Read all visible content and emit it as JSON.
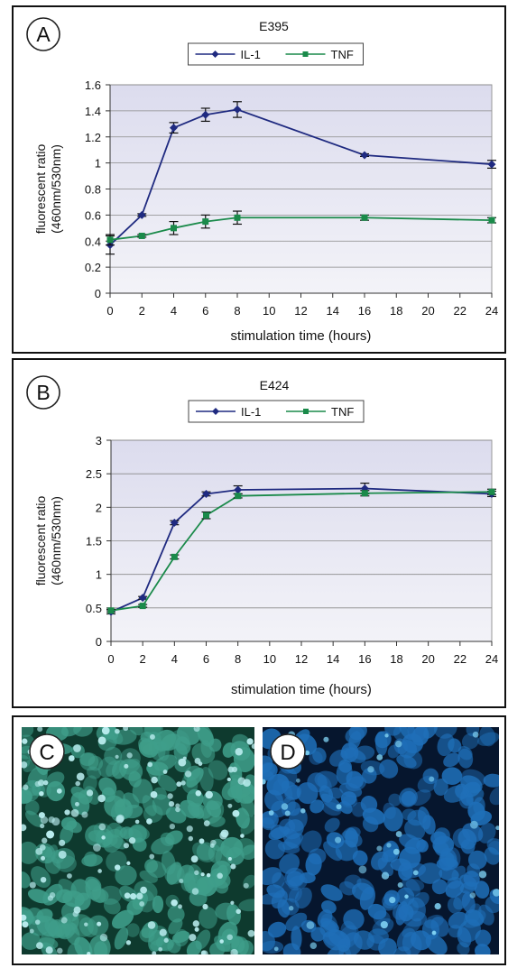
{
  "chart_data": [
    {
      "panel_label": "A",
      "type": "line",
      "title": "E395",
      "xlabel": "stimulation time (hours)",
      "ylabel_lines": [
        "fluorescent ratio",
        "(460nm/530nm)"
      ],
      "xlim": [
        0,
        24
      ],
      "ylim": [
        0,
        1.6
      ],
      "xticks": [
        0,
        2,
        4,
        6,
        8,
        10,
        12,
        14,
        16,
        18,
        20,
        22,
        24
      ],
      "yticks": [
        0,
        0.2,
        0.4,
        0.6,
        0.8,
        1,
        1.2,
        1.4,
        1.6
      ],
      "ytick_labels": [
        "0",
        "0.2",
        "0.4",
        "0.6",
        "0.8",
        "1",
        "1.2",
        "1.4",
        "1.6"
      ],
      "x": [
        0,
        2,
        4,
        6,
        8,
        16,
        24
      ],
      "grid": true,
      "legend_position": "top-center",
      "series": [
        {
          "name": "IL-1",
          "color": "#1f2a80",
          "marker": "diamond",
          "values": [
            0.37,
            0.6,
            1.27,
            1.37,
            1.41,
            1.06,
            0.99
          ],
          "errors": [
            0.07,
            0.01,
            0.04,
            0.05,
            0.06,
            0.01,
            0.03
          ]
        },
        {
          "name": "TNF",
          "color": "#1a8a4a",
          "marker": "square",
          "values": [
            0.41,
            0.44,
            0.5,
            0.55,
            0.58,
            0.58,
            0.56
          ],
          "errors": [
            0.04,
            0.01,
            0.05,
            0.05,
            0.05,
            0.02,
            0.02
          ]
        }
      ]
    },
    {
      "panel_label": "B",
      "type": "line",
      "title": "E424",
      "xlabel": "stimulation time (hours)",
      "ylabel_lines": [
        "fluorescent ratio",
        "(460nm/530nm)"
      ],
      "xlim": [
        0,
        24
      ],
      "ylim": [
        0,
        3
      ],
      "xticks": [
        0,
        2,
        4,
        6,
        8,
        10,
        12,
        14,
        16,
        18,
        20,
        22,
        24
      ],
      "yticks": [
        0,
        0.5,
        1,
        1.5,
        2,
        2.5,
        3
      ],
      "ytick_labels": [
        "0",
        "0.5",
        "1",
        "1.5",
        "2",
        "2.5",
        "3"
      ],
      "x": [
        0,
        2,
        4,
        6,
        8,
        16,
        24
      ],
      "grid": true,
      "legend_position": "top-center",
      "series": [
        {
          "name": "IL-1",
          "color": "#1f2a80",
          "marker": "diamond",
          "values": [
            0.44,
            0.65,
            1.77,
            2.2,
            2.26,
            2.28,
            2.2
          ],
          "errors": [
            0.03,
            0.02,
            0.03,
            0.03,
            0.06,
            0.08,
            0.04
          ]
        },
        {
          "name": "TNF",
          "color": "#1a8a4a",
          "marker": "square",
          "values": [
            0.46,
            0.53,
            1.26,
            1.88,
            2.17,
            2.21,
            2.23
          ],
          "errors": [
            0.02,
            0.02,
            0.03,
            0.05,
            0.03,
            0.04,
            0.04
          ]
        }
      ]
    }
  ],
  "images": [
    {
      "panel_label": "C",
      "colors": {
        "bg": "#0e3a2e",
        "cell": "#3f9e8a",
        "nucleus": "#b9ecee"
      }
    },
    {
      "panel_label": "D",
      "colors": {
        "bg": "#06162e",
        "cell": "#1f6fb8",
        "nucleus": "#7ed0f2"
      }
    }
  ]
}
